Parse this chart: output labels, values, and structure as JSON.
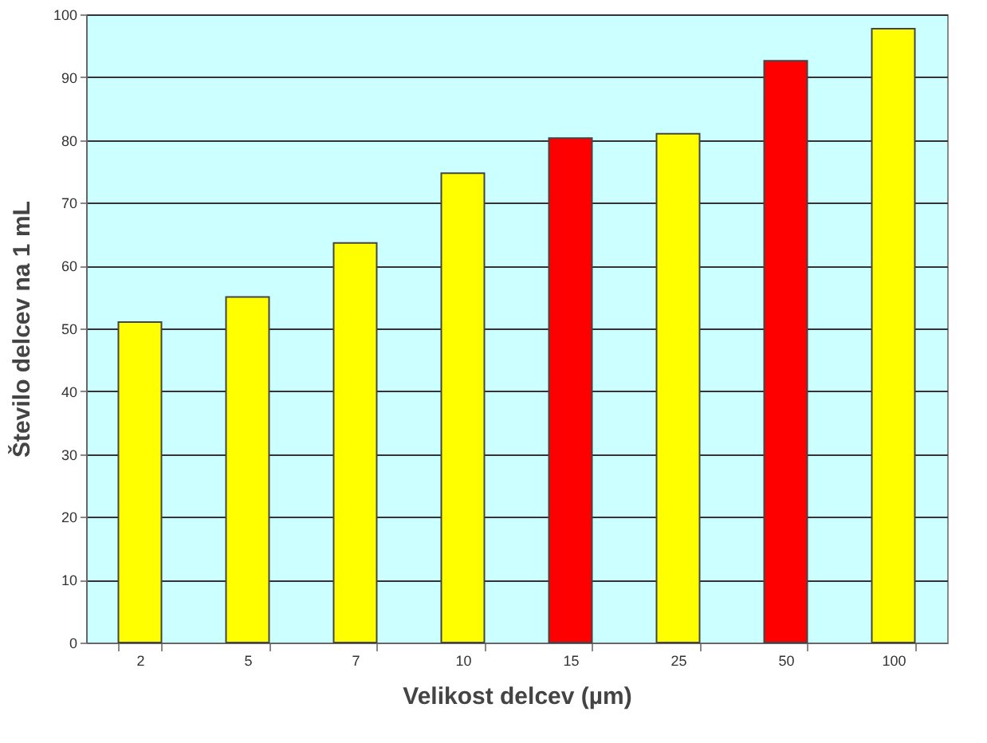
{
  "chart_data": {
    "type": "bar",
    "xlabel": "Velikost delcev  (µm)",
    "ylabel": "Število delcev na 1 mL",
    "categories": [
      "2",
      "5",
      "7",
      "10",
      "15",
      "25",
      "50",
      "100"
    ],
    "values": [
      51,
      55,
      63.6,
      74.7,
      80.3,
      81,
      92.6,
      97.7
    ],
    "colors": [
      "#ffff00",
      "#ffff00",
      "#ffff00",
      "#ffff00",
      "#ff0000",
      "#ffff00",
      "#ff0000",
      "#ffff00"
    ],
    "ylim": [
      0,
      100
    ],
    "yticks": [
      0,
      10,
      20,
      30,
      40,
      50,
      60,
      70,
      80,
      90,
      100
    ],
    "grid": "y"
  }
}
